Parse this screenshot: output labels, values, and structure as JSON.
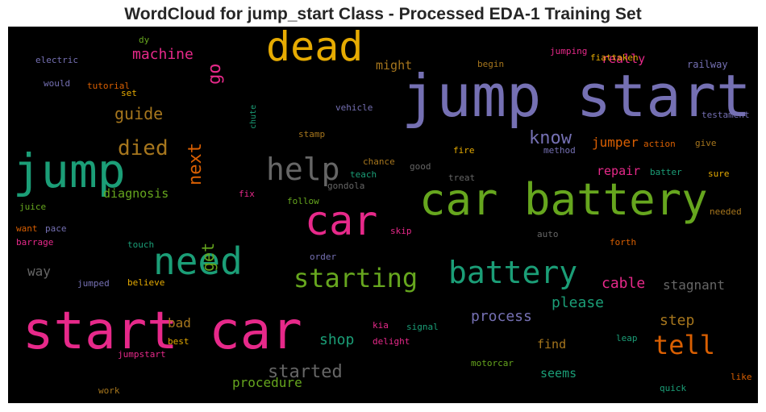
{
  "title": "WordCloud for jump_start Class - Processed EDA-1 Training Set",
  "words": [
    {
      "id": "jump-start",
      "text": "jump start",
      "color": "#7570b3"
    },
    {
      "id": "car-battery",
      "text": "car battery",
      "color": "#66a61e"
    },
    {
      "id": "start-car",
      "text": "start car",
      "color": "#e7298a"
    },
    {
      "id": "jump",
      "text": "jump",
      "color": "#1b9e77"
    },
    {
      "id": "dead",
      "text": "dead",
      "color": "#e6ab02"
    },
    {
      "id": "car",
      "text": "car",
      "color": "#e7298a"
    },
    {
      "id": "need",
      "text": "need",
      "color": "#1b9e77"
    },
    {
      "id": "battery",
      "text": "battery",
      "color": "#1b9e77"
    },
    {
      "id": "help",
      "text": "help",
      "color": "#666666"
    },
    {
      "id": "starting",
      "text": "starting",
      "color": "#66a61e"
    },
    {
      "id": "tell",
      "text": "tell",
      "color": "#d95f02"
    },
    {
      "id": "died",
      "text": "died",
      "color": "#a6761d"
    },
    {
      "id": "started",
      "text": "started",
      "color": "#666666"
    },
    {
      "id": "know",
      "text": "know",
      "color": "#7570b3"
    },
    {
      "id": "next",
      "text": "next",
      "color": "#d95f02"
    },
    {
      "id": "guide",
      "text": "guide",
      "color": "#a6761d"
    },
    {
      "id": "go",
      "text": "go",
      "color": "#e7298a"
    },
    {
      "id": "get",
      "text": "get",
      "color": "#66a61e"
    },
    {
      "id": "machine",
      "text": "machine",
      "color": "#e7298a"
    },
    {
      "id": "process",
      "text": "process",
      "color": "#7570b3"
    },
    {
      "id": "shop",
      "text": "shop",
      "color": "#1b9e77"
    },
    {
      "id": "cable",
      "text": "cable",
      "color": "#e7298a"
    },
    {
      "id": "please",
      "text": "please",
      "color": "#1b9e77"
    },
    {
      "id": "step",
      "text": "step",
      "color": "#a6761d"
    },
    {
      "id": "stagnant",
      "text": "stagnant",
      "color": "#666666"
    },
    {
      "id": "procedure",
      "text": "procedure",
      "color": "#66a61e"
    },
    {
      "id": "jumper",
      "text": "jumper",
      "color": "#d95f02"
    },
    {
      "id": "repair",
      "text": "repair",
      "color": "#e7298a"
    },
    {
      "id": "really",
      "text": "really",
      "color": "#e7298a"
    },
    {
      "id": "diagnosis",
      "text": "diagnosis",
      "color": "#66a61e"
    },
    {
      "id": "way",
      "text": "way",
      "color": "#666666"
    },
    {
      "id": "bad",
      "text": "bad",
      "color": "#a6761d"
    },
    {
      "id": "find",
      "text": "find",
      "color": "#a6761d"
    },
    {
      "id": "seems",
      "text": "seems",
      "color": "#1b9e77"
    },
    {
      "id": "might",
      "text": "might",
      "color": "#a6761d"
    },
    {
      "id": "railway",
      "text": "railway",
      "color": "#7570b3"
    },
    {
      "id": "begin",
      "text": "begin",
      "color": "#a6761d"
    },
    {
      "id": "jumping",
      "text": "jumping",
      "color": "#e7298a"
    },
    {
      "id": "fiattaken",
      "text": "fiattaken",
      "color": "#e6ab02"
    },
    {
      "id": "dy",
      "text": "dy",
      "color": "#66a61e"
    },
    {
      "id": "electric",
      "text": "electric",
      "color": "#7570b3"
    },
    {
      "id": "would",
      "text": "would",
      "color": "#7570b3"
    },
    {
      "id": "tutorial",
      "text": "tutorial",
      "color": "#d95f02"
    },
    {
      "id": "set",
      "text": "set",
      "color": "#e6ab02"
    },
    {
      "id": "chute",
      "text": "chute",
      "color": "#1b9e77"
    },
    {
      "id": "vehicle",
      "text": "vehicle",
      "color": "#7570b3"
    },
    {
      "id": "testament",
      "text": "testament",
      "color": "#7570b3"
    },
    {
      "id": "stamp",
      "text": "stamp",
      "color": "#a6761d"
    },
    {
      "id": "action",
      "text": "action",
      "color": "#d95f02"
    },
    {
      "id": "give",
      "text": "give",
      "color": "#a6761d"
    },
    {
      "id": "method",
      "text": "method",
      "color": "#7570b3"
    },
    {
      "id": "fire",
      "text": "fire",
      "color": "#e6ab02"
    },
    {
      "id": "chance",
      "text": "chance",
      "color": "#a6761d"
    },
    {
      "id": "good",
      "text": "good",
      "color": "#666666"
    },
    {
      "id": "teach",
      "text": "teach",
      "color": "#1b9e77"
    },
    {
      "id": "treat",
      "text": "treat",
      "color": "#666666"
    },
    {
      "id": "batter",
      "text": "batter",
      "color": "#1b9e77"
    },
    {
      "id": "sure",
      "text": "sure",
      "color": "#e6ab02"
    },
    {
      "id": "gondola",
      "text": "gondola",
      "color": "#666666"
    },
    {
      "id": "fix",
      "text": "fix",
      "color": "#e7298a"
    },
    {
      "id": "follow",
      "text": "follow",
      "color": "#66a61e"
    },
    {
      "id": "juice",
      "text": "juice",
      "color": "#66a61e"
    },
    {
      "id": "want",
      "text": "want",
      "color": "#d95f02"
    },
    {
      "id": "pace",
      "text": "pace",
      "color": "#7570b3"
    },
    {
      "id": "barrage",
      "text": "barrage",
      "color": "#e7298a"
    },
    {
      "id": "skip",
      "text": "skip",
      "color": "#e7298a"
    },
    {
      "id": "needed",
      "text": "needed",
      "color": "#a6761d"
    },
    {
      "id": "auto",
      "text": "auto",
      "color": "#666666"
    },
    {
      "id": "touch",
      "text": "touch",
      "color": "#1b9e77"
    },
    {
      "id": "forth",
      "text": "forth",
      "color": "#d95f02"
    },
    {
      "id": "order",
      "text": "order",
      "color": "#7570b3"
    },
    {
      "id": "jumped",
      "text": "jumped",
      "color": "#7570b3"
    },
    {
      "id": "believe",
      "text": "believe",
      "color": "#e6ab02"
    },
    {
      "id": "kia",
      "text": "kia",
      "color": "#e7298a"
    },
    {
      "id": "signal",
      "text": "signal",
      "color": "#1b9e77"
    },
    {
      "id": "delight",
      "text": "delight",
      "color": "#e7298a"
    },
    {
      "id": "leap",
      "text": "leap",
      "color": "#1b9e77"
    },
    {
      "id": "best",
      "text": "best",
      "color": "#e6ab02"
    },
    {
      "id": "jumpstart",
      "text": "jumpstart",
      "color": "#e7298a"
    },
    {
      "id": "motorcar",
      "text": "motorcar",
      "color": "#66a61e"
    },
    {
      "id": "like",
      "text": "like",
      "color": "#d95f02"
    },
    {
      "id": "work",
      "text": "work",
      "color": "#a6761d"
    },
    {
      "id": "quick",
      "text": "quick",
      "color": "#1b9e77"
    }
  ]
}
